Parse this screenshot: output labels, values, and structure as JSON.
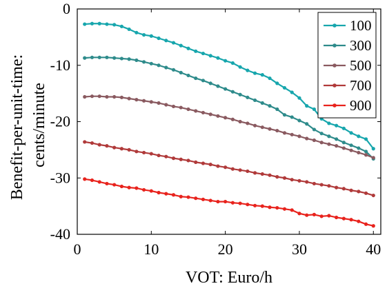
{
  "chart_data": {
    "type": "line",
    "title": "",
    "xlabel": "VOT: Euro/h",
    "ylabel_lines": [
      "Benefit-per-unit-time:",
      "cents/minute"
    ],
    "xlim": [
      0,
      41
    ],
    "ylim": [
      -40,
      0
    ],
    "xticks": [
      0,
      10,
      20,
      30,
      40
    ],
    "xtick_labels": [
      "0",
      "10",
      "20",
      "30",
      "40"
    ],
    "yticks": [
      0,
      -10,
      -20,
      -30,
      -40
    ],
    "ytick_labels": [
      "0",
      "-10",
      "-20",
      "-30",
      "-40"
    ],
    "grid": false,
    "legend_position": "top-right",
    "x": [
      1,
      2,
      3,
      4,
      5,
      6,
      7,
      8,
      9,
      10,
      11,
      12,
      13,
      14,
      15,
      16,
      17,
      18,
      19,
      20,
      21,
      22,
      23,
      24,
      25,
      26,
      27,
      28,
      29,
      30,
      31,
      32,
      33,
      34,
      35,
      36,
      37,
      38,
      39,
      40
    ],
    "series": [
      {
        "name": "100",
        "color": "#17a6ad",
        "values": [
          -2.7,
          -2.6,
          -2.6,
          -2.7,
          -2.8,
          -3.1,
          -3.6,
          -4.2,
          -4.6,
          -4.8,
          -5.2,
          -5.6,
          -6.0,
          -6.5,
          -7.0,
          -7.5,
          -7.9,
          -8.3,
          -8.7,
          -9.2,
          -9.6,
          -10.3,
          -10.9,
          -11.4,
          -11.7,
          -12.3,
          -13.2,
          -14.0,
          -14.8,
          -15.8,
          -17.2,
          -17.8,
          -19.5,
          -20.3,
          -20.7,
          -21.2,
          -22.0,
          -22.6,
          -23.1,
          -24.8
        ]
      },
      {
        "name": "300",
        "color": "#2e8b8b",
        "values": [
          -8.7,
          -8.6,
          -8.6,
          -8.6,
          -8.7,
          -8.8,
          -8.9,
          -9.1,
          -9.4,
          -9.7,
          -10.0,
          -10.4,
          -10.8,
          -11.3,
          -11.8,
          -12.3,
          -12.7,
          -13.2,
          -13.7,
          -14.2,
          -14.7,
          -15.2,
          -15.7,
          -16.2,
          -16.7,
          -17.2,
          -17.8,
          -18.8,
          -19.2,
          -19.8,
          -20.4,
          -21.4,
          -22.1,
          -22.6,
          -23.1,
          -23.7,
          -24.2,
          -24.7,
          -25.3,
          -26.6
        ]
      },
      {
        "name": "500",
        "color": "#8a5a60",
        "values": [
          -15.6,
          -15.5,
          -15.5,
          -15.6,
          -15.6,
          -15.7,
          -15.9,
          -16.1,
          -16.3,
          -16.5,
          -16.7,
          -17.0,
          -17.3,
          -17.5,
          -17.8,
          -18.1,
          -18.4,
          -18.7,
          -19.0,
          -19.3,
          -19.6,
          -20.0,
          -20.3,
          -20.7,
          -21.0,
          -21.3,
          -21.6,
          -22.0,
          -22.3,
          -22.6,
          -23.0,
          -23.3,
          -23.7,
          -24.0,
          -24.3,
          -24.7,
          -25.1,
          -25.5,
          -25.9,
          -26.4
        ]
      },
      {
        "name": "700",
        "color": "#b03a3a",
        "values": [
          -23.6,
          -23.8,
          -24.1,
          -24.3,
          -24.6,
          -24.8,
          -25.0,
          -25.3,
          -25.5,
          -25.7,
          -26.0,
          -26.2,
          -26.5,
          -26.7,
          -26.9,
          -27.2,
          -27.4,
          -27.6,
          -27.9,
          -28.1,
          -28.4,
          -28.6,
          -28.8,
          -29.1,
          -29.3,
          -29.5,
          -29.8,
          -30.0,
          -30.3,
          -30.5,
          -30.7,
          -31.0,
          -31.2,
          -31.4,
          -31.7,
          -31.9,
          -32.2,
          -32.4,
          -32.7,
          -33.1
        ]
      },
      {
        "name": "900",
        "color": "#e8231d",
        "values": [
          -30.2,
          -30.4,
          -30.7,
          -31.0,
          -31.2,
          -31.5,
          -31.7,
          -31.8,
          -32.1,
          -32.3,
          -32.6,
          -32.8,
          -33.0,
          -33.3,
          -33.4,
          -33.6,
          -33.8,
          -34.0,
          -34.2,
          -34.2,
          -34.4,
          -34.5,
          -34.7,
          -34.9,
          -35.0,
          -35.2,
          -35.3,
          -35.5,
          -35.7,
          -36.3,
          -36.6,
          -36.5,
          -36.8,
          -36.7,
          -37.0,
          -37.2,
          -37.4,
          -37.7,
          -38.2,
          -38.5
        ]
      }
    ]
  }
}
